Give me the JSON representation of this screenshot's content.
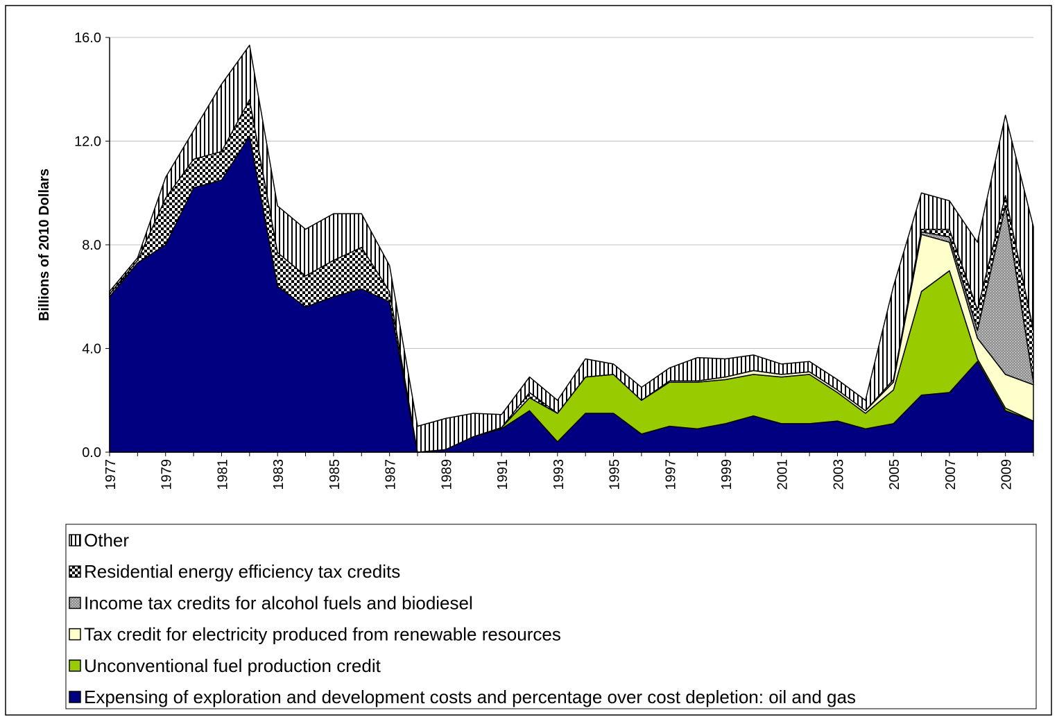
{
  "chart_data": {
    "type": "stacked-area",
    "y_label": "Billions of 2010 Dollars",
    "categories": [
      "1977",
      null,
      "1979",
      null,
      "1981",
      null,
      "1983",
      null,
      "1985",
      null,
      "1987",
      null,
      "1989",
      null,
      "1991",
      null,
      "1993",
      null,
      "1995",
      null,
      "1997",
      null,
      "1999",
      null,
      "2001",
      null,
      "2003",
      null,
      "2005",
      null,
      "2007",
      null,
      "2009",
      null
    ],
    "ylim": [
      0,
      16
    ],
    "yticks": [
      {
        "value": 0,
        "label": "0.0"
      },
      {
        "value": 4,
        "label": "4.0"
      },
      {
        "value": 8,
        "label": "8.0"
      },
      {
        "value": 12,
        "label": "12.0"
      },
      {
        "value": 16,
        "label": "16.0"
      }
    ],
    "grid": true,
    "legend": "bottom",
    "series": [
      {
        "name": "Expensing of exploration and development costs and percentage over cost depletion: oil and gas",
        "color": "#000080",
        "pattern": "solid",
        "values": [
          6.0,
          7.3,
          8.0,
          10.2,
          10.5,
          12.2,
          6.4,
          5.6,
          6.0,
          6.3,
          5.8,
          0,
          0.1,
          0.6,
          0.9,
          1.6,
          0.4,
          1.5,
          1.5,
          0.7,
          1.0,
          0.9,
          1.1,
          1.4,
          1.1,
          1.1,
          1.2,
          0.9,
          1.1,
          2.2,
          2.3,
          3.5,
          1.6,
          1.2
        ]
      },
      {
        "name": "Unconventional fuel production credit",
        "color": "#99cc00",
        "pattern": "solid",
        "values": [
          0,
          0,
          0,
          0,
          0,
          0,
          0,
          0,
          0,
          0,
          0,
          0,
          0,
          0,
          0.05,
          0.5,
          1.1,
          1.4,
          1.5,
          1.3,
          1.7,
          1.8,
          1.7,
          1.6,
          1.8,
          1.9,
          1.1,
          0.6,
          1.3,
          4.0,
          4.7,
          0.1,
          0.1,
          0
        ]
      },
      {
        "name": "Tax credit for electricity produced from renewable resources",
        "color": "#ffffcc",
        "pattern": "solid",
        "values": [
          0,
          0,
          0,
          0,
          0,
          0,
          0,
          0,
          0,
          0,
          0,
          0,
          0,
          0,
          0,
          0,
          0,
          0,
          0,
          0,
          0.05,
          0.05,
          0.1,
          0.15,
          0.1,
          0.1,
          0.1,
          0.1,
          0.3,
          2.2,
          1.1,
          0.8,
          1.3,
          1.4
        ]
      },
      {
        "name": "Income tax credits for alcohol fuels and biodiesel",
        "color": "#969696",
        "pattern": "dots",
        "values": [
          0,
          0,
          0,
          0,
          0,
          0,
          0,
          0,
          0,
          0,
          0,
          0,
          0,
          0,
          0,
          0,
          0,
          0,
          0,
          0,
          0,
          0,
          0,
          0,
          0,
          0,
          0,
          0,
          0.1,
          0.1,
          0.2,
          0.3,
          6.5,
          0.1
        ]
      },
      {
        "name": "Residential energy efficiency tax credits",
        "color": "#000000",
        "pattern": "checker",
        "values": [
          0.1,
          0.1,
          1.8,
          1.1,
          1.1,
          1.4,
          1.3,
          1.2,
          1.4,
          1.6,
          0.4,
          0,
          0,
          0,
          0,
          0.2,
          0,
          0,
          0,
          0,
          0,
          0,
          0,
          0,
          0,
          0,
          0,
          0,
          0,
          0.1,
          0.3,
          0.8,
          0.4,
          2.0
        ]
      },
      {
        "name": "Other",
        "color": "#000000",
        "pattern": "stripes",
        "values": [
          0.1,
          0.1,
          0.8,
          1.1,
          2.6,
          2.1,
          1.8,
          1.8,
          1.8,
          1.3,
          1.0,
          1.0,
          1.2,
          0.9,
          0.5,
          0.6,
          0.5,
          0.7,
          0.4,
          0.5,
          0.5,
          0.9,
          0.7,
          0.6,
          0.4,
          0.4,
          0.4,
          0.4,
          3.6,
          1.4,
          1.1,
          2.6,
          3.1,
          4.0
        ]
      }
    ]
  }
}
